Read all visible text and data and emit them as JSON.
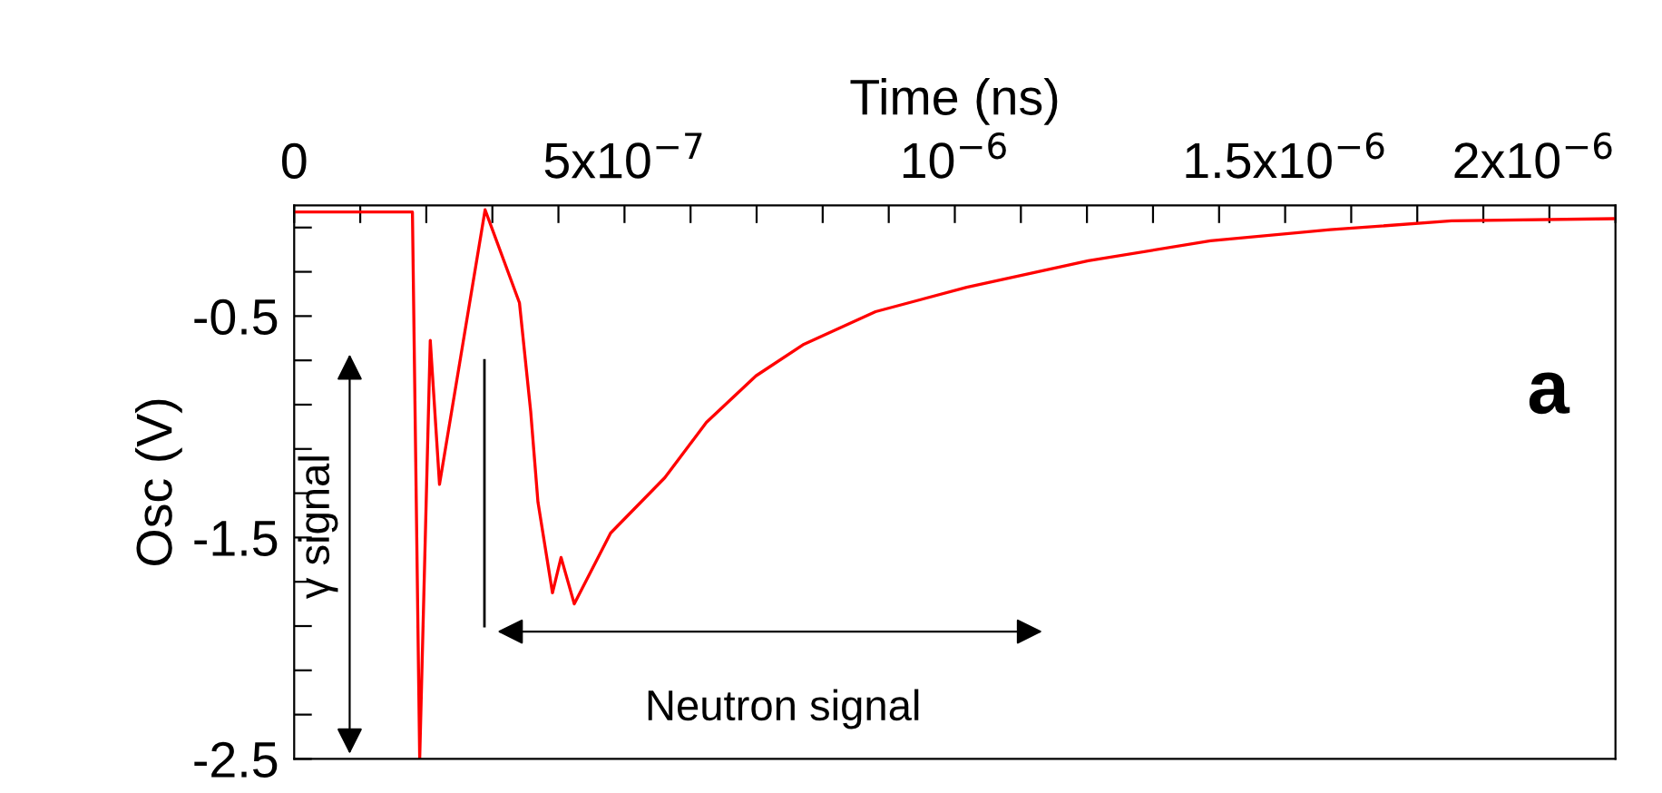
{
  "chart_data": {
    "type": "line",
    "xlabel": "Time (ns)",
    "ylabel": "Osc (V)",
    "x": [
      0,
      1.79e-07,
      1.9e-07,
      2.06e-07,
      2.2e-07,
      2.89e-07,
      3.41e-07,
      3.58e-07,
      3.69e-07,
      3.91e-07,
      4.04e-07,
      4.24e-07,
      4.79e-07,
      5.61e-07,
      6.24e-07,
      6.99e-07,
      7.7e-07,
      8.8e-07,
      1.018e-06,
      1.202e-06,
      1.387e-06,
      1.568e-06,
      1.752e-06,
      2e-06
    ],
    "series": [
      {
        "color": "#ff0000",
        "values": [
          -0.03,
          -0.03,
          -2.5,
          -0.61,
          -1.26,
          -0.02,
          -0.44,
          -0.93,
          -1.34,
          -1.75,
          -1.59,
          -1.8,
          -1.48,
          -1.23,
          -0.98,
          -0.77,
          -0.63,
          -0.48,
          -0.37,
          -0.25,
          -0.16,
          -0.11,
          -0.07,
          -0.06
        ]
      }
    ],
    "xlim": [
      0,
      2e-06
    ],
    "ylim": [
      -2.5,
      0
    ],
    "xticks": [
      0,
      {
        "value": 1e-07,
        "label": null
      },
      {
        "value": 2e-07,
        "label": null
      },
      {
        "value": 3e-07,
        "label": null
      },
      {
        "value": 4e-07,
        "label": null
      },
      {
        "value": 5e-07,
        "label": "5x10$^{−7}$"
      },
      {
        "value": 6e-07,
        "label": null
      },
      {
        "value": 7e-07,
        "label": null
      },
      {
        "value": 8e-07,
        "label": null
      },
      {
        "value": 9e-07,
        "label": null
      },
      {
        "value": 1e-06,
        "label": "10$^{−6}$"
      },
      {
        "value": 1.1e-06,
        "label": null
      },
      {
        "value": 1.2e-06,
        "label": null
      },
      {
        "value": 1.3e-06,
        "label": null
      },
      {
        "value": 1.4e-06,
        "label": null
      },
      {
        "value": 1.5e-06,
        "label": "1.5x10$^{−6}$"
      },
      {
        "value": 1.6e-06,
        "label": null
      },
      {
        "value": 1.7e-06,
        "label": null
      },
      {
        "value": 1.8e-06,
        "label": null
      },
      {
        "value": 1.9e-06,
        "label": null
      },
      {
        "value": 2e-06,
        "label": "2x10$^{−6}$"
      }
    ],
    "yticks": [
      {
        "value": -0.1,
        "label": null
      },
      {
        "value": -0.3,
        "label": null
      },
      -0.5,
      {
        "value": -0.7,
        "label": null
      },
      {
        "value": -0.9,
        "label": null
      },
      {
        "value": -1.1,
        "label": null
      },
      {
        "value": -1.3,
        "label": null
      },
      -1.5,
      {
        "value": -1.7,
        "label": null
      },
      {
        "value": -1.9,
        "label": null
      },
      {
        "value": -2.1,
        "label": null
      },
      {
        "value": -2.3,
        "label": null
      },
      -2.5
    ],
    "annotations": [
      "γ signal",
      "Neutron signal",
      "a"
    ],
    "grid": false,
    "marker": "none",
    "line_style": "solid"
  }
}
